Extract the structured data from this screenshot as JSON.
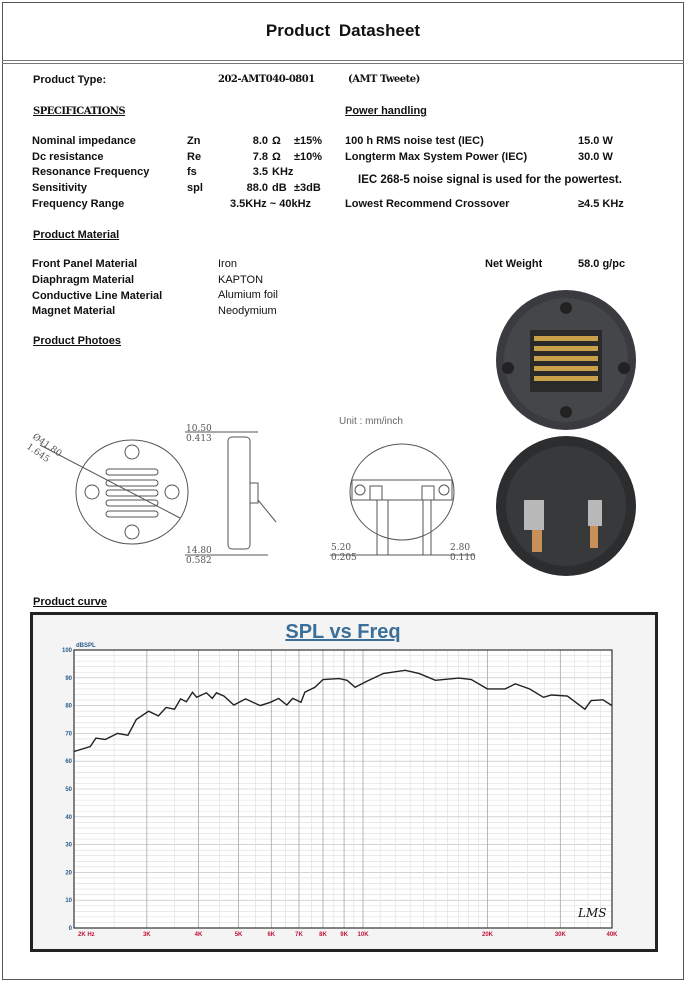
{
  "title": "Product Datasheet",
  "product_type": {
    "label": "Product Type:",
    "model": "202-AMT040-0801",
    "kind": "(AMT Tweete)"
  },
  "specifications": {
    "heading": "SPECIFICATIONS",
    "rows": [
      {
        "label": "Nominal impedance",
        "symbol": "Zn",
        "value": "8.0",
        "unit": "Ω",
        "tol": "±15%"
      },
      {
        "label": "Dc resistance",
        "symbol": "Re",
        "value": "7.8",
        "unit": "Ω",
        "tol": "±10%"
      },
      {
        "label": "Resonance Frequency",
        "symbol": "fs",
        "value": "3.5",
        "unit": "KHz",
        "tol": ""
      },
      {
        "label": "Sensitivity",
        "symbol": "spl",
        "value": "88.0",
        "unit": "dB",
        "tol": "±3dB"
      },
      {
        "label": "Frequency Range",
        "symbol": "",
        "value": "3.5KHz ~ 40kHz",
        "unit": "",
        "tol": ""
      }
    ]
  },
  "power_handling": {
    "heading": "Power handling",
    "rows": [
      {
        "label": "100 h RMS noise test (IEC)",
        "value": "15.0  W"
      },
      {
        "label": "Longterm Max System Power (IEC)",
        "value": "30.0  W"
      }
    ],
    "note": "IEC 268-5 noise signal is used for the powertest.",
    "crossover": {
      "label": "Lowest  Recommend Crossover",
      "value": "≥4.5 KHz"
    }
  },
  "material": {
    "heading": "Product Material",
    "rows": [
      {
        "label": "Front Panel Material",
        "value": "Iron"
      },
      {
        "label": "Diaphragm Material",
        "value": "KAPTON"
      },
      {
        "label": "Conductive Line Material",
        "value": "Alumium foil"
      },
      {
        "label": "Magnet Material",
        "value": "Neodymium"
      }
    ],
    "net_weight": {
      "label": "Net Weight",
      "value": "58.0  g/pc"
    }
  },
  "photos": {
    "heading": "Product Photoes",
    "unit_note": "Unit : mm/inch",
    "dims": {
      "diameter": "Ø41.80",
      "diameter_in": "1.645",
      "depth_top": "10.50",
      "depth_top_in": "0.413",
      "depth_bot": "14.80",
      "depth_bot_in": "0.582",
      "term_w": "5.20",
      "term_w_in": "0.205",
      "term_gap": "2.80",
      "term_gap_in": "0.110"
    }
  },
  "curve": {
    "heading": "Product curve",
    "logo": "LMS"
  },
  "chart_data": {
    "type": "line",
    "title": "SPL vs Freq",
    "ylabel": "dBSPL",
    "xlabel": "",
    "xscale": "log",
    "xlim": [
      2000,
      40000
    ],
    "ylim": [
      0,
      100
    ],
    "grid": true,
    "xticks": [
      {
        "v": 2000,
        "l": "2K  Hz"
      },
      {
        "v": 3000,
        "l": "3K"
      },
      {
        "v": 4000,
        "l": "4K"
      },
      {
        "v": 5000,
        "l": "5K"
      },
      {
        "v": 6000,
        "l": "6K"
      },
      {
        "v": 7000,
        "l": "7K"
      },
      {
        "v": 8000,
        "l": "8K"
      },
      {
        "v": 9000,
        "l": "9K"
      },
      {
        "v": 10000,
        "l": "10K"
      },
      {
        "v": 20000,
        "l": "20K"
      },
      {
        "v": 30000,
        "l": "30K"
      },
      {
        "v": 40000,
        "l": "40K"
      }
    ],
    "yticks": [
      "0",
      "10",
      "20",
      "30",
      "40",
      "50",
      "60",
      "70",
      "80",
      "90",
      "100"
    ],
    "series": [
      {
        "color": "#222222",
        "x": [
          2000,
          2190,
          2260,
          2380,
          2550,
          2700,
          2830,
          3030,
          3200,
          3340,
          3500,
          3620,
          3740,
          3870,
          3960,
          4180,
          4320,
          4420,
          4610,
          4870,
          5200,
          5640,
          5970,
          6250,
          6540,
          6760,
          7080,
          7230,
          7650,
          8000,
          8750,
          9150,
          9570,
          10200,
          11180,
          12650,
          13680,
          14960,
          17060,
          18270,
          19980,
          22060,
          23350,
          25260,
          27300,
          28570,
          31200,
          34400,
          35600,
          38050,
          40000
        ],
        "y": [
          63.5,
          65.3,
          68.3,
          67.8,
          70,
          69.3,
          75,
          78,
          76.3,
          79.3,
          78.7,
          82.4,
          81.4,
          84.8,
          83,
          84.6,
          82.6,
          84.6,
          83.4,
          80.2,
          82.4,
          80,
          81.2,
          82.6,
          80.2,
          82.6,
          81.2,
          84.8,
          86.6,
          89.4,
          89.7,
          89.1,
          86.6,
          88.7,
          91.5,
          92.7,
          91.5,
          89.1,
          89.9,
          89.4,
          86,
          86,
          87.8,
          86,
          83,
          83.8,
          83.4,
          78.7,
          81.8,
          82.1,
          80
        ]
      }
    ],
    "title_color": "#3a6f9a",
    "ytick_color": "#2a5c8a",
    "xtick_color": "#c0143c"
  }
}
